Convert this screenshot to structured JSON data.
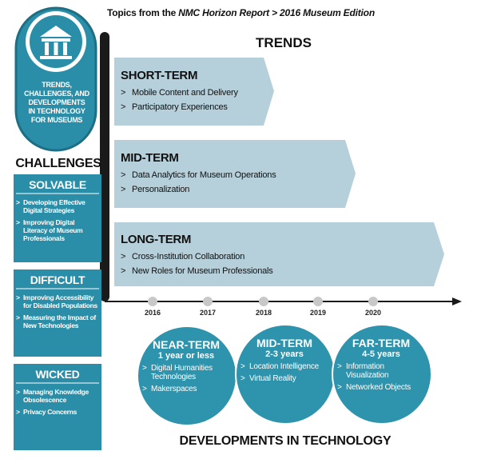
{
  "bullet": ">",
  "header": {
    "parts": [
      "Topics from the ",
      "NMC Horizon Report > 2016 Museum Edition"
    ]
  },
  "badge": {
    "lines": [
      "TRENDS,",
      "CHALLENGES, AND",
      "DEVELOPMENTS",
      "IN TECHNOLOGY",
      "FOR MUSEUMS"
    ]
  },
  "challenges": {
    "title": "CHALLENGES",
    "groups": [
      {
        "title": "SOLVABLE",
        "items": [
          "Developing Effective Digital Strategies",
          "Improving Digital Literacy of Museum Professionals"
        ]
      },
      {
        "title": "DIFFICULT",
        "items": [
          "Improving Accessibility for Disabled Populations",
          "Measuring the Impact of New Technologies"
        ]
      },
      {
        "title": "WICKED",
        "items": [
          "Managing Knowledge Obsolescence",
          "Privacy Concerns"
        ]
      }
    ]
  },
  "trends": {
    "title": "TRENDS",
    "rows": [
      {
        "term": "SHORT-TERM",
        "items": [
          "Mobile Content and Delivery",
          "Participatory Experiences"
        ]
      },
      {
        "term": "MID-TERM",
        "items": [
          "Data Analytics for Museum Operations",
          "Personalization"
        ]
      },
      {
        "term": "LONG-TERM",
        "items": [
          "Cross-Institution Collaboration",
          "New Roles for Museum Professionals"
        ]
      }
    ]
  },
  "timeline": {
    "years": [
      2016,
      2017,
      2018,
      2019,
      2020
    ]
  },
  "developments": {
    "title": "DEVELOPMENTS IN TECHNOLOGY",
    "circles": [
      {
        "term": "NEAR-TERM",
        "horizon": "1 year or less",
        "items": [
          "Digital Humanities Technologies",
          "Makerspaces"
        ]
      },
      {
        "term": "MID-TERM",
        "horizon": "2-3 years",
        "items": [
          "Location Intelligence",
          "Virtual Reality"
        ]
      },
      {
        "term": "FAR-TERM",
        "horizon": "4-5 years",
        "items": [
          "Information Visualization",
          "Networked Objects"
        ]
      }
    ]
  }
}
